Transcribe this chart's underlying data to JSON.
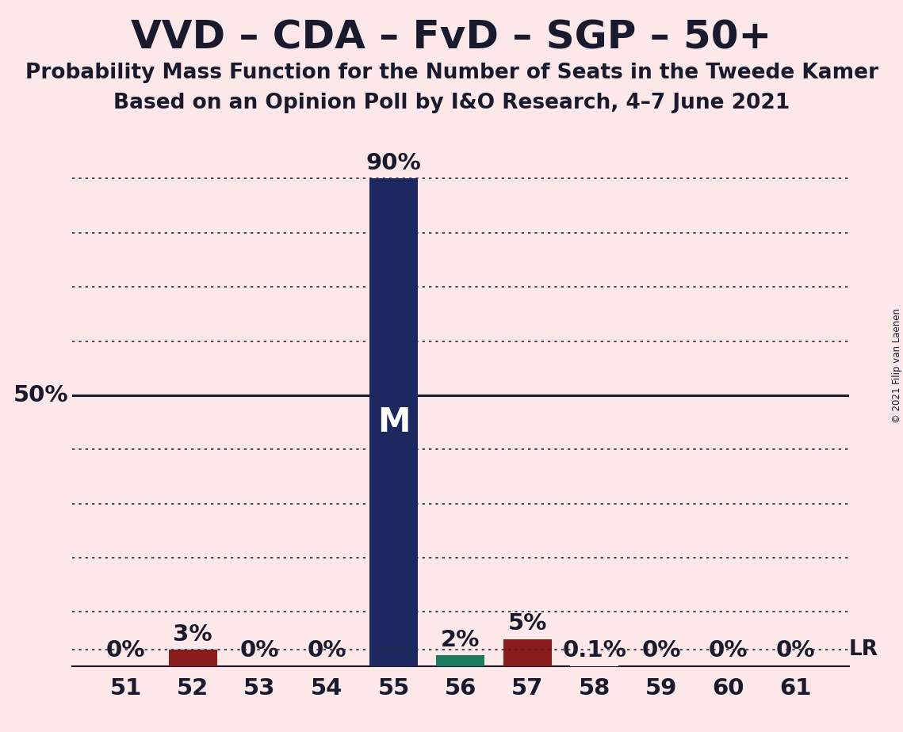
{
  "title": "VVD – CDA – FvD – SGP – 50+",
  "subtitle1": "Probability Mass Function for the Number of Seats in the Tweede Kamer",
  "subtitle2": "Based on an Opinion Poll by I&O Research, 4–7 June 2021",
  "copyright": "© 2021 Filip van Laenen",
  "seats": [
    51,
    52,
    53,
    54,
    55,
    56,
    57,
    58,
    59,
    60,
    61
  ],
  "probabilities": [
    0.0,
    3.0,
    0.0,
    0.0,
    90.0,
    2.0,
    5.0,
    0.1,
    0.0,
    0.0,
    0.0
  ],
  "bar_colors": [
    "#fce8e8",
    "#8b1c1c",
    "#fce8e8",
    "#fce8e8",
    "#1e2860",
    "#1a7a5e",
    "#8b1c1c",
    "#fce8e8",
    "#fce8e8",
    "#fce8e8",
    "#fce8e8"
  ],
  "median_seat": 55,
  "last_result_pct": 3.0,
  "background_color": "#fce8e8",
  "ylim": [
    0,
    100
  ],
  "yticks": [
    10,
    20,
    30,
    40,
    50,
    60,
    70,
    80,
    90
  ],
  "fifty_pct_label": "50%",
  "lr_label": "LR",
  "text_color": "#1a1a2e",
  "bar_width": 0.72,
  "title_fontsize": 36,
  "subtitle_fontsize": 19,
  "tick_fontsize": 21,
  "annotation_fontsize": 21,
  "median_label_fontsize": 30,
  "legend_fontsize": 19,
  "fifty_label_fontsize": 21
}
